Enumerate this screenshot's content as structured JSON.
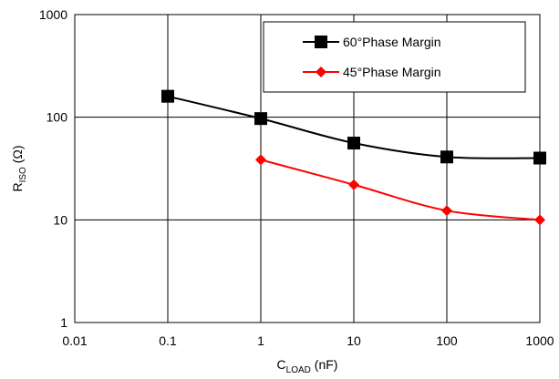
{
  "chart_data": {
    "type": "line",
    "xscale": "log",
    "yscale": "log",
    "xlim": [
      0.01,
      1000
    ],
    "ylim": [
      1,
      1000
    ],
    "x_ticks": [
      "0.01",
      "0.1",
      "1",
      "10",
      "100",
      "1000"
    ],
    "y_ticks": [
      "1",
      "10",
      "100",
      "1000"
    ],
    "xlabel": {
      "main": "C",
      "sub": "LOAD",
      "unit": " (nF)"
    },
    "ylabel": {
      "main": "R",
      "sub": "ISO",
      "unit": " (Ω)"
    },
    "grid": true,
    "legend_position": "top-right",
    "series": [
      {
        "name": "60°Phase Margin",
        "color": "#000000",
        "marker": "square",
        "x": [
          0.1,
          1,
          10,
          100,
          1000
        ],
        "y": [
          160,
          97,
          56,
          41,
          40
        ]
      },
      {
        "name": "45°Phase Margin",
        "color": "#ff0000",
        "marker": "diamond",
        "x": [
          1,
          10,
          100,
          1000
        ],
        "y": [
          38.5,
          22,
          12.3,
          10
        ]
      }
    ]
  }
}
